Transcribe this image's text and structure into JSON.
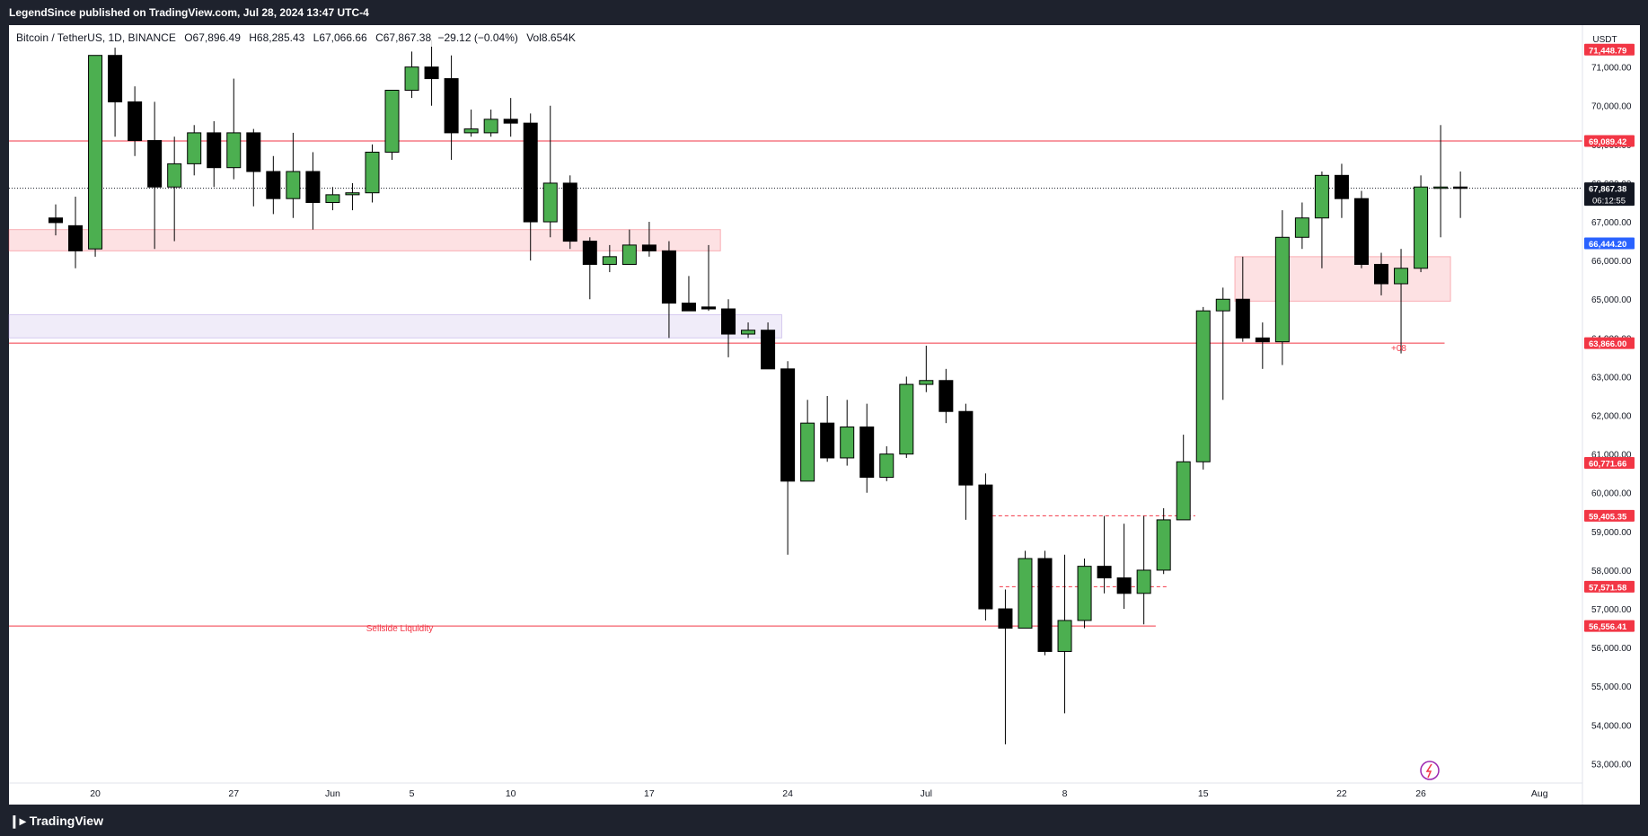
{
  "header": {
    "publisher_line": "LegendSince published on TradingView.com, Jul 28, 2024 13:47 UTC-4"
  },
  "legend": {
    "symbol": "Bitcoin / TetherUS, 1D, BINANCE",
    "open": "O67,896.49",
    "high": "H68,285.43",
    "low": "L67,066.66",
    "close": "C67,867.38",
    "change": "−29.12 (−0.04%)",
    "volume": "Vol8.654K"
  },
  "price_scale": {
    "currency": "USDT",
    "ticks": [
      "71,000.00",
      "70,000.00",
      "69,000.00",
      "68,000.00",
      "67,000.00",
      "66,000.00",
      "65,000.00",
      "64,000.00",
      "63,000.00",
      "62,000.00",
      "61,000.00",
      "60,000.00",
      "59,000.00",
      "58,000.00",
      "57,000.00",
      "56,000.00",
      "55,000.00",
      "54,000.00",
      "53,000.00"
    ],
    "tick_values": [
      71000,
      70000,
      69000,
      68000,
      67000,
      66000,
      65000,
      64000,
      63000,
      62000,
      61000,
      60000,
      59000,
      58000,
      57000,
      56000,
      55000,
      54000,
      53000
    ],
    "badges": [
      {
        "label": "71,448.79",
        "value": 71448.79,
        "color": "#f23645"
      },
      {
        "label": "69,089.42",
        "value": 69089.42,
        "color": "#f23645"
      },
      {
        "label": "67,867.38",
        "value": 67867.38,
        "color": "#131722",
        "sub": "06:12:55"
      },
      {
        "label": "66,444.20",
        "value": 66444.2,
        "color": "#2962ff"
      },
      {
        "label": "63,866.00",
        "value": 63866.0,
        "color": "#f23645"
      },
      {
        "label": "60,771.66",
        "value": 60771.66,
        "color": "#f23645"
      },
      {
        "label": "59,405.35",
        "value": 59405.35,
        "color": "#f23645"
      },
      {
        "label": "57,571.58",
        "value": 57571.58,
        "color": "#f23645"
      },
      {
        "label": "56,556.41",
        "value": 56556.41,
        "color": "#f23645"
      }
    ]
  },
  "time_scale": {
    "labels": [
      {
        "text": "20",
        "index": 2
      },
      {
        "text": "27",
        "index": 9
      },
      {
        "text": "Jun",
        "index": 14
      },
      {
        "text": "5",
        "index": 18
      },
      {
        "text": "10",
        "index": 23
      },
      {
        "text": "17",
        "index": 30
      },
      {
        "text": "24",
        "index": 37
      },
      {
        "text": "Jul",
        "index": 44
      },
      {
        "text": "8",
        "index": 51
      },
      {
        "text": "15",
        "index": 58
      },
      {
        "text": "22",
        "index": 65
      },
      {
        "text": "26",
        "index": 69
      },
      {
        "text": "Aug",
        "index": 75
      }
    ]
  },
  "annotations": {
    "sellside_liquidity": "Sellside Liquidity",
    "level_label_08": "+08"
  },
  "colors": {
    "up": "#4caf50",
    "down": "#000000",
    "line": "#f23645",
    "zone_red": "#f23645",
    "zone_purple": "#9c7fd9"
  },
  "chart_data": {
    "type": "candlestick",
    "title": "Bitcoin / TetherUS, 1D, BINANCE",
    "ylim": [
      52600,
      71600
    ],
    "grid": false,
    "candles": [
      {
        "i": 0,
        "o": 67100,
        "h": 67450,
        "l": 66650,
        "c": 66980
      },
      {
        "i": 1,
        "o": 66900,
        "h": 67650,
        "l": 65800,
        "c": 66250
      },
      {
        "i": 2,
        "o": 66300,
        "h": 71200,
        "l": 66100,
        "c": 71300
      },
      {
        "i": 3,
        "o": 71300,
        "h": 71500,
        "l": 69200,
        "c": 70100
      },
      {
        "i": 4,
        "o": 70100,
        "h": 70500,
        "l": 68700,
        "c": 69100
      },
      {
        "i": 5,
        "o": 69100,
        "h": 70100,
        "l": 66300,
        "c": 67900
      },
      {
        "i": 6,
        "o": 67900,
        "h": 69200,
        "l": 66500,
        "c": 68500
      },
      {
        "i": 7,
        "o": 68500,
        "h": 69500,
        "l": 68200,
        "c": 69300
      },
      {
        "i": 8,
        "o": 69300,
        "h": 69600,
        "l": 67900,
        "c": 68400
      },
      {
        "i": 9,
        "o": 68400,
        "h": 70700,
        "l": 68100,
        "c": 69300
      },
      {
        "i": 10,
        "o": 69300,
        "h": 69400,
        "l": 67400,
        "c": 68300
      },
      {
        "i": 11,
        "o": 68300,
        "h": 68700,
        "l": 67200,
        "c": 67600
      },
      {
        "i": 12,
        "o": 67600,
        "h": 69300,
        "l": 67100,
        "c": 68300
      },
      {
        "i": 13,
        "o": 68300,
        "h": 68800,
        "l": 66800,
        "c": 67500
      },
      {
        "i": 14,
        "o": 67500,
        "h": 67900,
        "l": 67300,
        "c": 67700
      },
      {
        "i": 15,
        "o": 67700,
        "h": 68000,
        "l": 67300,
        "c": 67750
      },
      {
        "i": 16,
        "o": 67750,
        "h": 69000,
        "l": 67500,
        "c": 68800
      },
      {
        "i": 17,
        "o": 68800,
        "h": 70300,
        "l": 68600,
        "c": 70400
      },
      {
        "i": 18,
        "o": 70400,
        "h": 71400,
        "l": 70200,
        "c": 71000
      },
      {
        "i": 19,
        "o": 71000,
        "h": 71700,
        "l": 70000,
        "c": 70700
      },
      {
        "i": 20,
        "o": 70700,
        "h": 71300,
        "l": 68600,
        "c": 69300
      },
      {
        "i": 21,
        "o": 69300,
        "h": 69900,
        "l": 69200,
        "c": 69400
      },
      {
        "i": 22,
        "o": 69300,
        "h": 69900,
        "l": 69200,
        "c": 69650
      },
      {
        "i": 23,
        "o": 69650,
        "h": 70200,
        "l": 69200,
        "c": 69550
      },
      {
        "i": 24,
        "o": 69550,
        "h": 69800,
        "l": 66000,
        "c": 67000
      },
      {
        "i": 25,
        "o": 67000,
        "h": 70000,
        "l": 66600,
        "c": 68000
      },
      {
        "i": 26,
        "o": 68000,
        "h": 68200,
        "l": 66300,
        "c": 66500
      },
      {
        "i": 27,
        "o": 66500,
        "h": 66600,
        "l": 65000,
        "c": 65900
      },
      {
        "i": 28,
        "o": 65900,
        "h": 66400,
        "l": 65700,
        "c": 66100
      },
      {
        "i": 29,
        "o": 65900,
        "h": 66800,
        "l": 65900,
        "c": 66400
      },
      {
        "i": 30,
        "o": 66400,
        "h": 67000,
        "l": 66100,
        "c": 66250
      },
      {
        "i": 31,
        "o": 66250,
        "h": 66500,
        "l": 64000,
        "c": 64900
      },
      {
        "i": 32,
        "o": 64900,
        "h": 65600,
        "l": 64700,
        "c": 64700
      },
      {
        "i": 33,
        "o": 64800,
        "h": 66400,
        "l": 64700,
        "c": 64750
      },
      {
        "i": 34,
        "o": 64750,
        "h": 65000,
        "l": 63500,
        "c": 64100
      },
      {
        "i": 35,
        "o": 64100,
        "h": 64400,
        "l": 64000,
        "c": 64200
      },
      {
        "i": 36,
        "o": 64200,
        "h": 64400,
        "l": 63300,
        "c": 63200
      },
      {
        "i": 37,
        "o": 63200,
        "h": 63400,
        "l": 58400,
        "c": 60300
      },
      {
        "i": 38,
        "o": 60300,
        "h": 62400,
        "l": 60300,
        "c": 61800
      },
      {
        "i": 39,
        "o": 61800,
        "h": 62500,
        "l": 60800,
        "c": 60900
      },
      {
        "i": 40,
        "o": 60900,
        "h": 62400,
        "l": 60700,
        "c": 61700
      },
      {
        "i": 41,
        "o": 61700,
        "h": 62300,
        "l": 60000,
        "c": 60400
      },
      {
        "i": 42,
        "o": 60400,
        "h": 61200,
        "l": 60300,
        "c": 61000
      },
      {
        "i": 43,
        "o": 61000,
        "h": 63000,
        "l": 60900,
        "c": 62800
      },
      {
        "i": 44,
        "o": 62800,
        "h": 63800,
        "l": 62600,
        "c": 62900
      },
      {
        "i": 45,
        "o": 62900,
        "h": 63200,
        "l": 61800,
        "c": 62100
      },
      {
        "i": 46,
        "o": 62100,
        "h": 62300,
        "l": 59300,
        "c": 60200
      },
      {
        "i": 47,
        "o": 60200,
        "h": 60500,
        "l": 56700,
        "c": 57000
      },
      {
        "i": 48,
        "o": 57000,
        "h": 57500,
        "l": 53500,
        "c": 56500
      },
      {
        "i": 49,
        "o": 56500,
        "h": 58500,
        "l": 56500,
        "c": 58300
      },
      {
        "i": 50,
        "o": 58300,
        "h": 58500,
        "l": 55800,
        "c": 55900
      },
      {
        "i": 51,
        "o": 55900,
        "h": 58400,
        "l": 54300,
        "c": 56700
      },
      {
        "i": 52,
        "o": 56700,
        "h": 58300,
        "l": 56500,
        "c": 58100
      },
      {
        "i": 53,
        "o": 58100,
        "h": 59400,
        "l": 57400,
        "c": 57800
      },
      {
        "i": 54,
        "o": 57800,
        "h": 59200,
        "l": 57000,
        "c": 57400
      },
      {
        "i": 55,
        "o": 57400,
        "h": 59400,
        "l": 56600,
        "c": 58000
      },
      {
        "i": 56,
        "o": 58000,
        "h": 59600,
        "l": 57900,
        "c": 59300
      },
      {
        "i": 57,
        "o": 59300,
        "h": 61500,
        "l": 59300,
        "c": 60800
      },
      {
        "i": 58,
        "o": 60800,
        "h": 64800,
        "l": 60600,
        "c": 64700
      },
      {
        "i": 59,
        "o": 64700,
        "h": 65300,
        "l": 62400,
        "c": 65000
      },
      {
        "i": 60,
        "o": 65000,
        "h": 66100,
        "l": 63900,
        "c": 64000
      },
      {
        "i": 61,
        "o": 64000,
        "h": 64400,
        "l": 63200,
        "c": 63900
      },
      {
        "i": 62,
        "o": 63900,
        "h": 67300,
        "l": 63300,
        "c": 66600
      },
      {
        "i": 63,
        "o": 66600,
        "h": 67500,
        "l": 66300,
        "c": 67100
      },
      {
        "i": 64,
        "o": 67100,
        "h": 68300,
        "l": 65800,
        "c": 68200
      },
      {
        "i": 65,
        "o": 68200,
        "h": 68500,
        "l": 67100,
        "c": 67600
      },
      {
        "i": 66,
        "o": 67600,
        "h": 67800,
        "l": 65800,
        "c": 65900
      },
      {
        "i": 67,
        "o": 65900,
        "h": 66200,
        "l": 65100,
        "c": 65400
      },
      {
        "i": 68,
        "o": 65400,
        "h": 66300,
        "l": 63600,
        "c": 65800
      },
      {
        "i": 69,
        "o": 65800,
        "h": 68200,
        "l": 65700,
        "c": 67900
      },
      {
        "i": 70,
        "o": 67900,
        "h": 69500,
        "l": 66600,
        "c": 67900
      },
      {
        "i": 71,
        "o": 67900,
        "h": 68300,
        "l": 67100,
        "c": 67870
      }
    ],
    "levels": [
      {
        "y": 69089.42,
        "x0": 0,
        "x1": 80,
        "style": "solid"
      },
      {
        "y": 63866.0,
        "x0": 0,
        "x1": 70.2,
        "style": "solid"
      },
      {
        "y": 59405.35,
        "x0": 46.7,
        "x1": 57.6,
        "style": "dashed"
      },
      {
        "y": 57571.58,
        "x0": 47.7,
        "x1": 56.2,
        "style": "dashed"
      },
      {
        "y": 56556.41,
        "x0": 0,
        "x1": 55.6,
        "style": "solid"
      },
      {
        "y": 67867.38,
        "x0": 0,
        "x1": 80,
        "style": "dotted"
      }
    ],
    "zones": [
      {
        "color": "red",
        "y0": 66250,
        "y1": 66800,
        "x0": 0,
        "x1": 33.6
      },
      {
        "color": "purple",
        "y0": 64000,
        "y1": 64600,
        "x0": 0,
        "x1": 36.7
      },
      {
        "color": "red",
        "y0": 64950,
        "y1": 66100,
        "x0": 59.6,
        "x1": 70.5
      }
    ]
  }
}
